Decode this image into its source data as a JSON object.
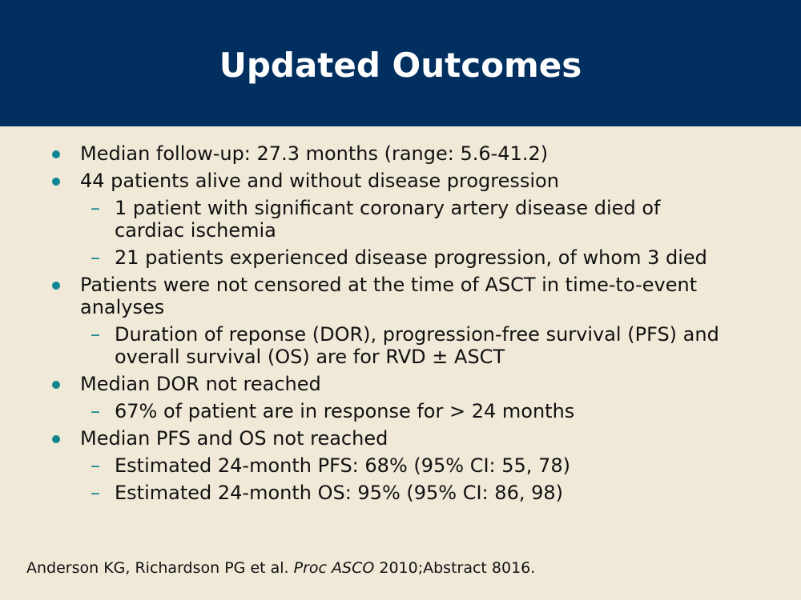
{
  "slide": {
    "title": "Updated Outcomes",
    "colors": {
      "header_bg": "#012f5f",
      "body_bg": "#f0e9d8",
      "bullet": "#0f8590",
      "title_text": "#ffffff"
    },
    "items": [
      {
        "text": "Median follow-up: 27.3 months (range: 5.6-41.2)"
      },
      {
        "text": "44 patients alive and without disease progression"
      },
      {
        "text": "1 patient with significant coronary artery disease died of cardiac ischemia"
      },
      {
        "text": "21 patients experienced disease progression, of whom 3 died"
      },
      {
        "text": "Patients were not censored at the time of ASCT in time-to-event analyses"
      },
      {
        "text": "Duration of reponse (DOR), progression-free survival (PFS) and overall survival (OS) are for RVD ± ASCT"
      },
      {
        "text": "Median DOR not reached"
      },
      {
        "text": "67% of patient are in response for > 24 months"
      },
      {
        "text": "Median PFS and OS not reached"
      },
      {
        "text": "Estimated 24-month PFS: 68% (95% CI: 55, 78)"
      },
      {
        "text": "Estimated 24-month OS: 95% (95% CI: 86, 98)"
      }
    ],
    "dash_symbol": "–",
    "footer": {
      "authors": "Anderson KG, Richardson PG et al.",
      "journal": "Proc ASCO",
      "citation": "2010;Abstract 8016."
    }
  }
}
